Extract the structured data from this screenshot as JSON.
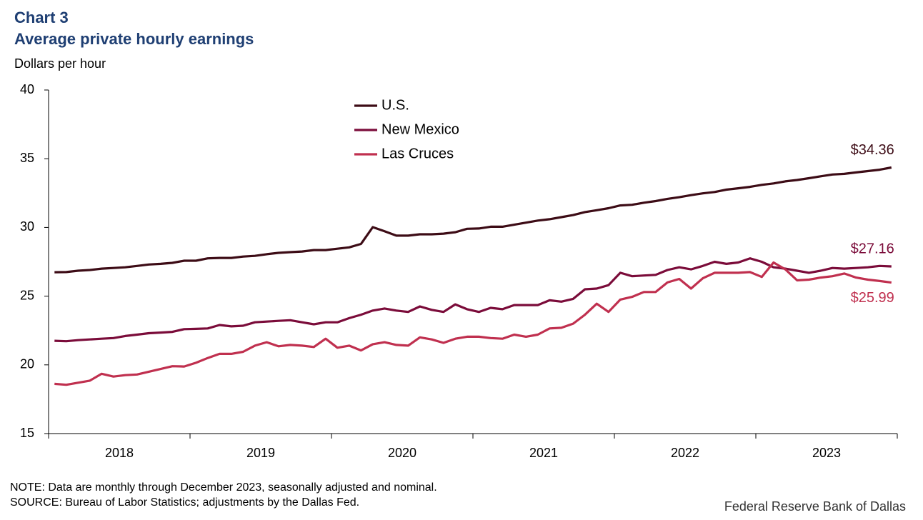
{
  "chart_data": {
    "type": "line",
    "title": "Chart 3",
    "subtitle": "Average private hourly earnings",
    "y_label": "Dollars per hour",
    "note": "NOTE: Data are monthly through December 2023, seasonally adjusted and nominal.",
    "source": "SOURCE: Bureau of Labor Statistics; adjustments by the Dallas Fed.",
    "credit": "Federal Reserve Bank of Dallas",
    "categories": [
      null,
      null,
      null,
      null,
      null,
      null,
      "2018",
      null,
      null,
      null,
      null,
      null,
      null,
      null,
      null,
      null,
      null,
      null,
      "2019",
      null,
      null,
      null,
      null,
      null,
      null,
      null,
      null,
      null,
      null,
      null,
      "2020",
      null,
      null,
      null,
      null,
      null,
      null,
      null,
      null,
      null,
      null,
      null,
      "2021",
      null,
      null,
      null,
      null,
      null,
      null,
      null,
      null,
      null,
      null,
      null,
      "2022",
      null,
      null,
      null,
      null,
      null,
      null,
      null,
      null,
      null,
      null,
      null,
      "2023",
      null,
      null,
      null,
      null,
      null
    ],
    "ylim": [
      15,
      40
    ],
    "yticks": [
      15,
      20,
      25,
      30,
      35,
      40
    ],
    "grid": false,
    "legend": "top",
    "series": [
      {
        "name": "U.S.",
        "color": "#3d0c16",
        "values": [
          26.74,
          26.75,
          26.85,
          26.9,
          27.0,
          27.05,
          27.1,
          27.2,
          27.3,
          27.35,
          27.42,
          27.58,
          27.58,
          27.75,
          27.78,
          27.78,
          27.88,
          27.93,
          28.05,
          28.15,
          28.2,
          28.25,
          28.35,
          28.35,
          28.45,
          28.55,
          28.8,
          30.02,
          29.72,
          29.4,
          29.4,
          29.5,
          29.5,
          29.55,
          29.65,
          29.9,
          29.92,
          30.05,
          30.05,
          30.2,
          30.35,
          30.5,
          30.6,
          30.75,
          30.9,
          31.12,
          31.25,
          31.4,
          31.6,
          31.65,
          31.8,
          31.92,
          32.08,
          32.2,
          32.35,
          32.48,
          32.58,
          32.75,
          32.85,
          32.95,
          33.1,
          33.2,
          33.35,
          33.45,
          33.58,
          33.72,
          33.85,
          33.9,
          34.0,
          34.1,
          34.2,
          34.36
        ],
        "value_labels": [
          null,
          null,
          null,
          null,
          null,
          null,
          null,
          null,
          null,
          null,
          null,
          null,
          null,
          null,
          null,
          null,
          null,
          null,
          null,
          null,
          null,
          null,
          null,
          null,
          null,
          null,
          null,
          null,
          null,
          null,
          null,
          null,
          null,
          null,
          null,
          null,
          null,
          null,
          null,
          null,
          null,
          null,
          null,
          null,
          null,
          null,
          null,
          null,
          null,
          null,
          null,
          null,
          null,
          null,
          null,
          null,
          null,
          null,
          null,
          null,
          null,
          null,
          null,
          null,
          null,
          null,
          null,
          null,
          null,
          null,
          null,
          "$34.36"
        ]
      },
      {
        "name": "New Mexico",
        "color": "#7b0c3a",
        "values": [
          21.75,
          21.72,
          21.8,
          21.85,
          21.9,
          21.95,
          22.1,
          22.2,
          22.3,
          22.35,
          22.4,
          22.6,
          22.62,
          22.65,
          22.9,
          22.8,
          22.85,
          23.1,
          23.15,
          23.2,
          23.25,
          23.1,
          22.95,
          23.1,
          23.1,
          23.4,
          23.65,
          23.95,
          24.1,
          23.95,
          23.85,
          24.25,
          24.0,
          23.85,
          24.4,
          24.05,
          23.85,
          24.15,
          24.05,
          24.35,
          24.35,
          24.35,
          24.7,
          24.6,
          24.8,
          25.5,
          25.55,
          25.8,
          26.7,
          26.45,
          26.5,
          26.55,
          26.9,
          27.1,
          26.95,
          27.2,
          27.5,
          27.35,
          27.45,
          27.75,
          27.5,
          27.1,
          27.0,
          26.85,
          26.7,
          26.85,
          27.05,
          27.0,
          27.05,
          27.1,
          27.2,
          27.16
        ],
        "value_labels": [
          null,
          null,
          null,
          null,
          null,
          null,
          null,
          null,
          null,
          null,
          null,
          null,
          null,
          null,
          null,
          null,
          null,
          null,
          null,
          null,
          null,
          null,
          null,
          null,
          null,
          null,
          null,
          null,
          null,
          null,
          null,
          null,
          null,
          null,
          null,
          null,
          null,
          null,
          null,
          null,
          null,
          null,
          null,
          null,
          null,
          null,
          null,
          null,
          null,
          null,
          null,
          null,
          null,
          null,
          null,
          null,
          null,
          null,
          null,
          null,
          null,
          null,
          null,
          null,
          null,
          null,
          null,
          null,
          null,
          null,
          null,
          "$27.16"
        ]
      },
      {
        "name": "Las Cruces",
        "color": "#c0304f",
        "values": [
          18.62,
          18.55,
          18.7,
          18.85,
          19.35,
          19.15,
          19.25,
          19.3,
          19.5,
          19.7,
          19.9,
          19.88,
          20.15,
          20.5,
          20.8,
          20.8,
          20.95,
          21.4,
          21.65,
          21.35,
          21.45,
          21.4,
          21.3,
          21.9,
          21.25,
          21.4,
          21.05,
          21.5,
          21.65,
          21.45,
          21.4,
          22.0,
          21.85,
          21.6,
          21.9,
          22.05,
          22.05,
          21.95,
          21.9,
          22.2,
          22.05,
          22.2,
          22.65,
          22.7,
          23.0,
          23.65,
          24.45,
          23.85,
          24.75,
          24.95,
          25.3,
          25.3,
          26.0,
          26.25,
          25.55,
          26.3,
          26.7,
          26.7,
          26.7,
          26.75,
          26.4,
          27.45,
          26.95,
          26.15,
          26.2,
          26.35,
          26.45,
          26.65,
          26.35,
          26.2,
          26.1,
          25.99
        ],
        "value_labels": [
          null,
          null,
          null,
          null,
          null,
          null,
          null,
          null,
          null,
          null,
          null,
          null,
          null,
          null,
          null,
          null,
          null,
          null,
          null,
          null,
          null,
          null,
          null,
          null,
          null,
          null,
          null,
          null,
          null,
          null,
          null,
          null,
          null,
          null,
          null,
          null,
          null,
          null,
          null,
          null,
          null,
          null,
          null,
          null,
          null,
          null,
          null,
          null,
          null,
          null,
          null,
          null,
          null,
          null,
          null,
          null,
          null,
          null,
          null,
          null,
          null,
          null,
          null,
          null,
          null,
          null,
          null,
          null,
          null,
          null,
          null,
          "$25.99"
        ]
      }
    ]
  }
}
